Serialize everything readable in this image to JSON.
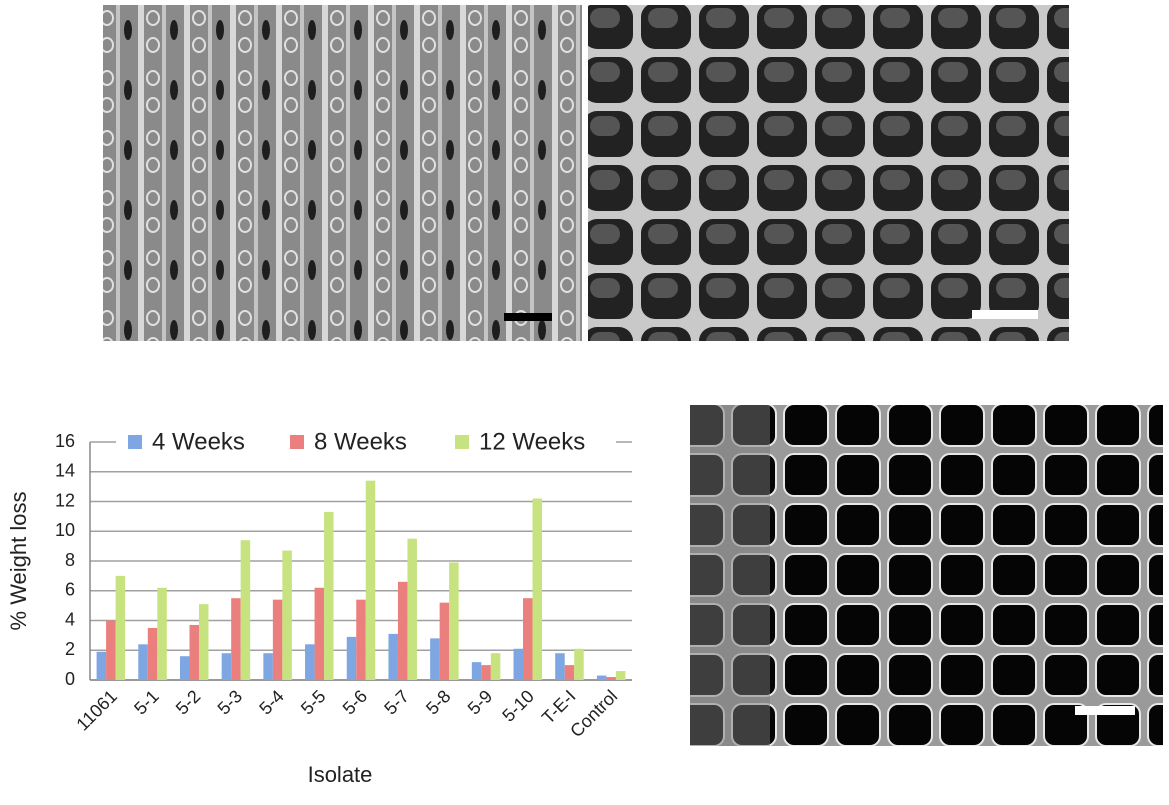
{
  "chart_data": {
    "type": "bar",
    "y_label": "% Weight loss",
    "x_label": "Isolate",
    "categories": [
      "11061",
      "5-1",
      "5-2",
      "5-3",
      "5-4",
      "5-5",
      "5-6",
      "5-7",
      "5-8",
      "5-9",
      "5-10",
      "T-E-I",
      "Control"
    ],
    "series": [
      {
        "name": "4 Weeks",
        "color": "#7ea6e3",
        "values": [
          1.9,
          2.4,
          1.6,
          1.8,
          1.8,
          2.4,
          2.9,
          3.1,
          2.8,
          1.2,
          2.1,
          1.8,
          0.3
        ]
      },
      {
        "name": "8 Weeks",
        "color": "#ea7f7d",
        "values": [
          4.0,
          3.5,
          3.7,
          5.5,
          5.4,
          6.2,
          5.4,
          6.6,
          5.2,
          1.0,
          5.5,
          1.0,
          0.2
        ]
      },
      {
        "name": "12 Weeks",
        "color": "#c6e37f",
        "values": [
          7.0,
          6.2,
          5.1,
          9.4,
          8.7,
          11.3,
          13.4,
          9.5,
          7.9,
          1.8,
          12.2,
          2.1,
          0.6
        ]
      }
    ],
    "ylim": [
      0,
      16
    ],
    "yticks": [
      0,
      2,
      4,
      6,
      8,
      10,
      12,
      14,
      16
    ],
    "grid": true,
    "legend": "top"
  }
}
